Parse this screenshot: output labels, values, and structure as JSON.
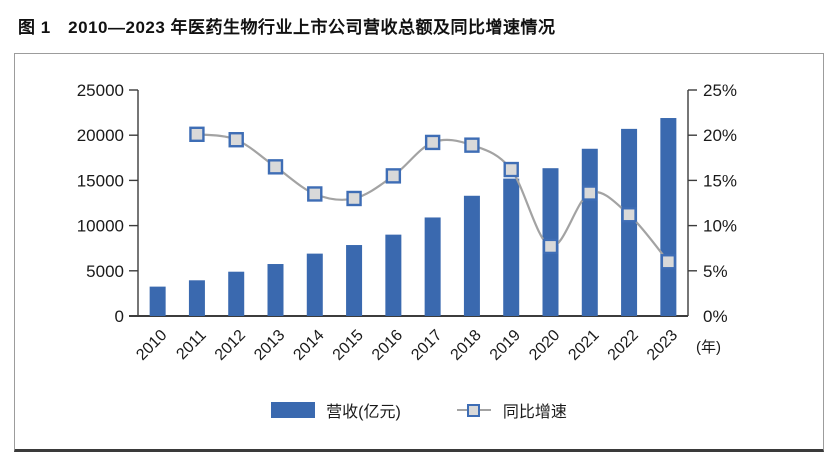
{
  "chart_data": {
    "type": "bar",
    "subtype": "bar-line-combo",
    "title": "图 1　2010—2023 年医药生物行业上市公司营收总额及同比增速情况",
    "categories": [
      "2010",
      "2011",
      "2012",
      "2013",
      "2014",
      "2015",
      "2016",
      "2017",
      "2018",
      "2019",
      "2020",
      "2021",
      "2022",
      "2023"
    ],
    "series": [
      {
        "name": "营收(亿元)",
        "type": "bar",
        "axis": "left",
        "color": "#3A69AF",
        "values": [
          3250,
          3950,
          4900,
          5750,
          6900,
          7850,
          9000,
          10900,
          13300,
          15200,
          16350,
          18500,
          20700,
          21900
        ]
      },
      {
        "name": "同比增速",
        "type": "line",
        "axis": "right",
        "color": "#A3A3A3",
        "marker": "square",
        "marker_fill": "#D9D9D9",
        "marker_stroke": "#3E6DB5",
        "values": [
          null,
          20.1,
          19.5,
          16.5,
          13.5,
          13.0,
          15.5,
          19.2,
          18.9,
          16.2,
          7.7,
          13.6,
          11.2,
          6.0
        ]
      }
    ],
    "left_axis": {
      "min": 0,
      "max": 25000,
      "step": 5000,
      "tick_labels": [
        "0",
        "5000",
        "10000",
        "15000",
        "20000",
        "25000"
      ]
    },
    "right_axis": {
      "min": 0,
      "max": 25,
      "step": 5,
      "tick_labels": [
        "0%",
        "5%",
        "10%",
        "15%",
        "20%",
        "25%"
      ]
    },
    "x_unit_label": "(年)",
    "legend_position": "bottom",
    "grid": false,
    "axis_color": "#3C3C3C"
  }
}
